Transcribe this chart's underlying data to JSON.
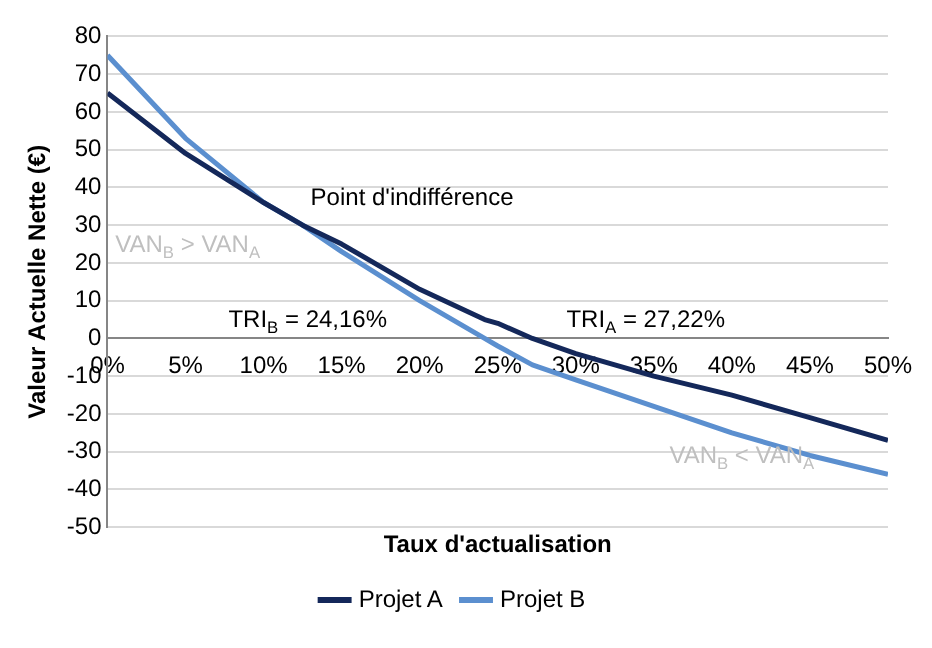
{
  "chart_data": {
    "type": "line",
    "xlabel": "Taux d'actualisation",
    "ylabel": "Valeur Actuelle Nette (€)",
    "xlim": [
      0,
      50
    ],
    "xticks": [
      {
        "value": 0,
        "label": "0%"
      },
      {
        "value": 5,
        "label": "5%"
      },
      {
        "value": 10,
        "label": "10%"
      },
      {
        "value": 15,
        "label": "15%"
      },
      {
        "value": 20,
        "label": "20%"
      },
      {
        "value": 25,
        "label": "25%"
      },
      {
        "value": 30,
        "label": "30%"
      },
      {
        "value": 35,
        "label": "35%"
      },
      {
        "value": 40,
        "label": "40%"
      },
      {
        "value": 45,
        "label": "45%"
      },
      {
        "value": 50,
        "label": "50%"
      }
    ],
    "ylim": [
      -50,
      80
    ],
    "yticks": [
      -50,
      -40,
      -30,
      -20,
      -10,
      0,
      10,
      20,
      30,
      40,
      50,
      60,
      70,
      80
    ],
    "x": [
      0,
      5,
      10,
      12.5,
      15,
      20,
      24.16,
      25,
      27.22,
      30,
      35,
      40,
      45,
      50
    ],
    "series": [
      {
        "name": "Projet A",
        "color": "#14285a",
        "values": [
          65,
          49,
          36,
          30,
          25,
          13,
          5,
          4,
          0,
          -4,
          -10,
          -15,
          -21,
          -27
        ]
      },
      {
        "name": "Projet B",
        "color": "#5b8fcf",
        "values": [
          75,
          53,
          36,
          30,
          23,
          10,
          0,
          -2,
          -7,
          -11,
          -18,
          -25,
          -31,
          -36
        ]
      }
    ],
    "annotations": [
      {
        "text": "Point d'indifférence",
        "x": 12.5,
        "y": 30
      },
      "VAN$_{B}$ > VAN$_{A}$",
      "TRI$_{B}$ = 24,16%",
      "TRI$_{A}$ = 27,22%",
      "VAN$_{B}$ < VAN$_{A}$"
    ],
    "grid": "y",
    "legend": "bottom",
    "marker": "none",
    "line_style": "solid"
  }
}
